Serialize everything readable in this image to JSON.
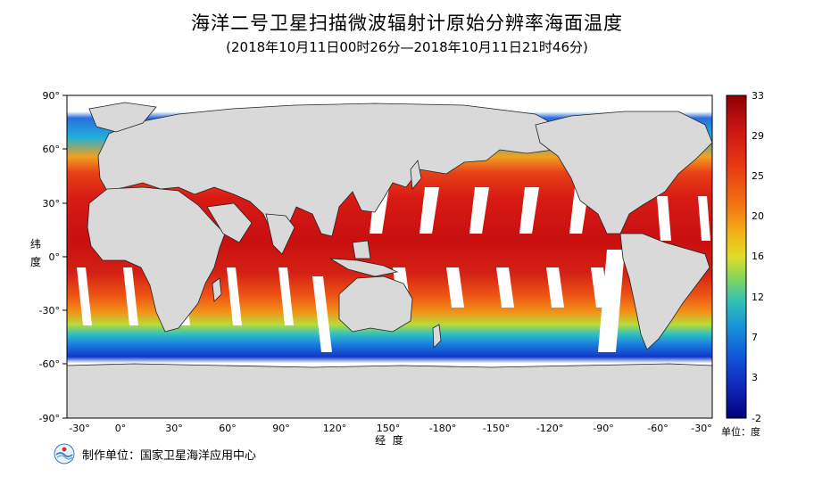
{
  "title": "海洋二号卫星扫描微波辐射计原始分辨率海面温度",
  "subtitle": "(2018年10月11日00时26分—2018年10月11日21时46分)",
  "axes": {
    "ylabel_chars": [
      "纬",
      "度"
    ],
    "xlabel": "经  度",
    "lat_ticks": [
      "90°",
      "60°",
      "30°",
      "0°",
      "-30°",
      "-60°",
      "-90°"
    ],
    "lon_ticks": [
      "-30°",
      "0°",
      "30°",
      "60°",
      "90°",
      "120°",
      "150°",
      "-180°",
      "-150°",
      "-120°",
      "-90°",
      "-60°",
      "-30°"
    ]
  },
  "colorbar": {
    "ticks": [
      "33",
      "29",
      "25",
      "20",
      "16",
      "12",
      "7",
      "3",
      "-2"
    ],
    "unit": "单位：度",
    "colors": [
      "#8b0000",
      "#d41010",
      "#f04010",
      "#f87a10",
      "#f8b810",
      "#f0e020",
      "#a8e040",
      "#40d0a0",
      "#10a8d8",
      "#1060e0",
      "#1020c0",
      "#000080"
    ]
  },
  "footer": {
    "label": "制作单位：国家卫星海洋应用中心"
  },
  "colors": {
    "land": "#d9d9d9",
    "nodata": "#ffffff",
    "frame": "#000000"
  }
}
